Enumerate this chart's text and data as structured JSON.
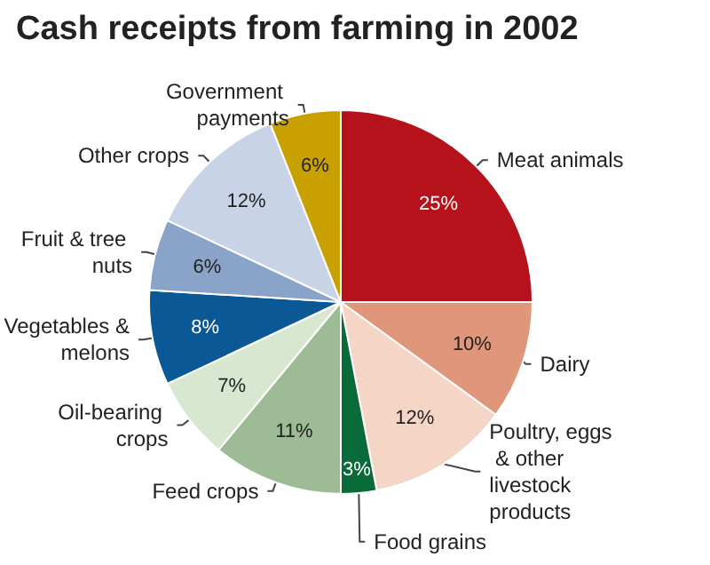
{
  "chart_data": {
    "type": "pie",
    "title": "Cash receipts from farming in 2002",
    "categories": [
      "Meat animals",
      "Dairy",
      "Poultry, eggs & other livestock products",
      "Food grains",
      "Feed crops",
      "Oil-bearing crops",
      "Vegetables & melons",
      "Fruit & tree nuts",
      "Other crops",
      "Government payments"
    ],
    "values": [
      25,
      10,
      12,
      3,
      11,
      7,
      8,
      6,
      12,
      6
    ],
    "value_labels": [
      "25%",
      "10%",
      "12%",
      "3%",
      "11%",
      "7%",
      "8%",
      "6%",
      "12%",
      "6%"
    ],
    "colors": [
      "#b5121b",
      "#e0967a",
      "#f5d5c5",
      "#0a6b3a",
      "#9dbb94",
      "#d8e8d0",
      "#0a5896",
      "#8aa3c8",
      "#c8d3e8",
      "#c8a000"
    ],
    "legend": false
  }
}
